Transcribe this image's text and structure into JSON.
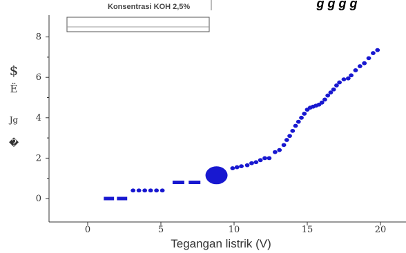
{
  "chart_data": {
    "type": "scatter",
    "top_label": "Konsentrasi KOH 2,5%",
    "top_title_fragment": "g g   g g",
    "legend_text": "",
    "xlabel": "Tegangan listrik (V)",
    "ylabel_glyphs": [
      "$",
      "Ë",
      "Jg",
      "�"
    ],
    "xlim": [
      -2.3,
      22
    ],
    "ylim": [
      -1.05,
      8.2
    ],
    "x_ticks": [
      0,
      5,
      10,
      15,
      20
    ],
    "y_ticks": [
      0,
      2,
      4,
      6,
      8
    ],
    "grid": false,
    "color": "#1818d0",
    "dashes": [
      {
        "x1": 1.1,
        "x2": 1.8,
        "y": 0.0
      },
      {
        "x1": 2.0,
        "x2": 2.7,
        "y": 0.0
      },
      {
        "x1": 5.8,
        "x2": 6.6,
        "y": 0.8
      },
      {
        "x1": 6.9,
        "x2": 7.7,
        "y": 0.8
      }
    ],
    "big_point": {
      "x": 8.8,
      "y": 1.15
    },
    "points": [
      {
        "x": 3.1,
        "y": 0.4
      },
      {
        "x": 3.5,
        "y": 0.4
      },
      {
        "x": 3.9,
        "y": 0.4
      },
      {
        "x": 4.3,
        "y": 0.4
      },
      {
        "x": 4.7,
        "y": 0.4
      },
      {
        "x": 5.1,
        "y": 0.4
      },
      {
        "x": 9.9,
        "y": 1.5
      },
      {
        "x": 10.2,
        "y": 1.55
      },
      {
        "x": 10.5,
        "y": 1.6
      },
      {
        "x": 10.9,
        "y": 1.65
      },
      {
        "x": 11.2,
        "y": 1.75
      },
      {
        "x": 11.5,
        "y": 1.8
      },
      {
        "x": 11.8,
        "y": 1.9
      },
      {
        "x": 12.1,
        "y": 2.0
      },
      {
        "x": 12.4,
        "y": 2.0
      },
      {
        "x": 12.8,
        "y": 2.3
      },
      {
        "x": 13.1,
        "y": 2.4
      },
      {
        "x": 13.4,
        "y": 2.65
      },
      {
        "x": 13.6,
        "y": 2.9
      },
      {
        "x": 13.8,
        "y": 3.1
      },
      {
        "x": 14.0,
        "y": 3.35
      },
      {
        "x": 14.2,
        "y": 3.6
      },
      {
        "x": 14.4,
        "y": 3.8
      },
      {
        "x": 14.6,
        "y": 4.0
      },
      {
        "x": 14.8,
        "y": 4.2
      },
      {
        "x": 15.0,
        "y": 4.4
      },
      {
        "x": 15.2,
        "y": 4.5
      },
      {
        "x": 15.4,
        "y": 4.55
      },
      {
        "x": 15.6,
        "y": 4.6
      },
      {
        "x": 15.8,
        "y": 4.65
      },
      {
        "x": 16.0,
        "y": 4.75
      },
      {
        "x": 16.2,
        "y": 4.9
      },
      {
        "x": 16.4,
        "y": 5.1
      },
      {
        "x": 16.6,
        "y": 5.25
      },
      {
        "x": 16.8,
        "y": 5.4
      },
      {
        "x": 17.0,
        "y": 5.6
      },
      {
        "x": 17.2,
        "y": 5.75
      },
      {
        "x": 17.5,
        "y": 5.9
      },
      {
        "x": 17.8,
        "y": 5.95
      },
      {
        "x": 18.0,
        "y": 6.1
      },
      {
        "x": 18.3,
        "y": 6.35
      },
      {
        "x": 18.6,
        "y": 6.55
      },
      {
        "x": 18.9,
        "y": 6.7
      },
      {
        "x": 19.2,
        "y": 6.95
      },
      {
        "x": 19.5,
        "y": 7.2
      },
      {
        "x": 19.8,
        "y": 7.35
      }
    ]
  }
}
